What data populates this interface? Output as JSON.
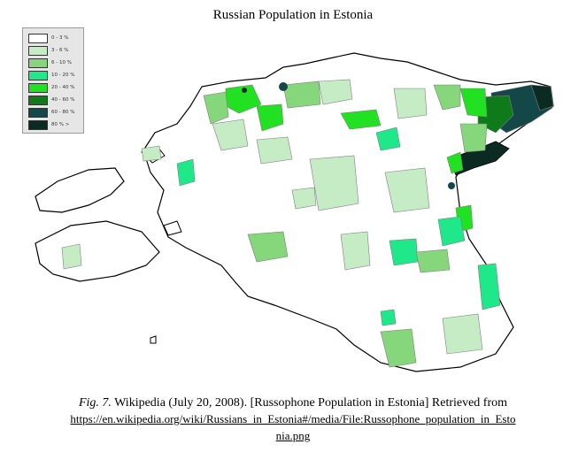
{
  "map": {
    "title": "Russian Population in Estonia",
    "legend": [
      {
        "label": "0 - 3  %",
        "color": "#ffffff"
      },
      {
        "label": "3 - 6  %",
        "color": "#c6ecc6"
      },
      {
        "label": "6 - 10  %",
        "color": "#86d67c"
      },
      {
        "label": "10 - 20  %",
        "color": "#1fe88a"
      },
      {
        "label": "20 - 40  %",
        "color": "#22e022"
      },
      {
        "label": "40 - 60  %",
        "color": "#0e7a1a"
      },
      {
        "label": "60 - 80  %",
        "color": "#144848"
      },
      {
        "label": "80 % >",
        "color": "#0b2a22"
      }
    ]
  },
  "caption": {
    "fig_label": "Fig. 7.",
    "text": " Wikipedia (July 20, 2008). [Russophone Population in Estonia] Retrieved from",
    "link_line1": "https://en.wikipedia.org/wiki/Russians_in_Estonia#/media/File:Russophone_population_in_Esto",
    "link_line2": "nia.png"
  }
}
